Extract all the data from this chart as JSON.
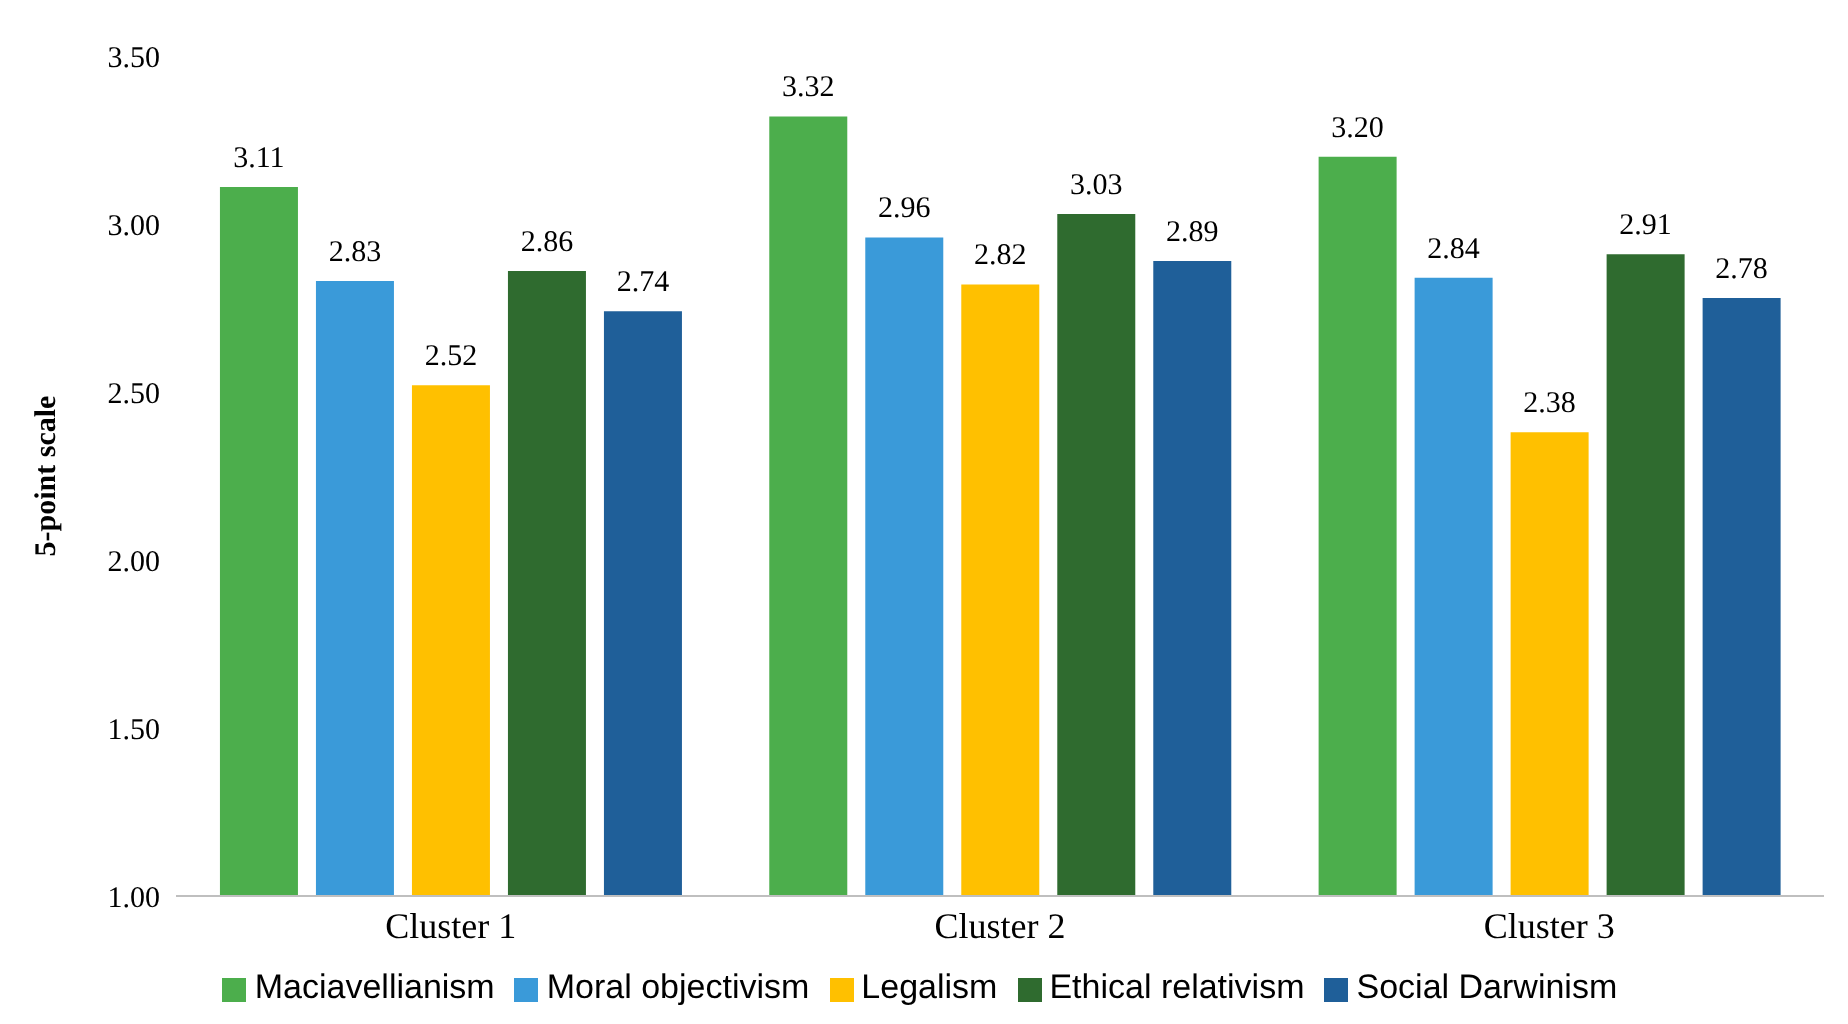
{
  "chart_data": {
    "type": "bar",
    "ylabel": "5-point scale",
    "categories": [
      "Cluster 1",
      "Cluster 2",
      "Cluster 3"
    ],
    "series": [
      {
        "name": "Maciavellianism",
        "color": "#4cae4c",
        "values": [
          3.11,
          3.32,
          3.2
        ],
        "value_labels": [
          "3.11",
          "3.32",
          "3.20"
        ]
      },
      {
        "name": "Moral objectivism",
        "color": "#3a9ad9",
        "values": [
          2.83,
          2.96,
          2.84
        ],
        "value_labels": [
          "2.83",
          "2.96",
          "2.84"
        ]
      },
      {
        "name": "Legalism",
        "color": "#ffc000",
        "values": [
          2.52,
          2.82,
          2.38
        ],
        "value_labels": [
          "2.52",
          "2.82",
          "2.38"
        ]
      },
      {
        "name": "Ethical relativism",
        "color": "#2f6b2f",
        "values": [
          2.86,
          3.03,
          2.91
        ],
        "value_labels": [
          "2.86",
          "3.03",
          "2.91"
        ]
      },
      {
        "name": "Social Darwinism",
        "color": "#1f5f99",
        "values": [
          2.74,
          2.89,
          2.78
        ],
        "value_labels": [
          "2.74",
          "2.89",
          "2.78"
        ]
      }
    ],
    "ylim": [
      1,
      3.5
    ],
    "yticks": [
      {
        "value": 1,
        "label": "1.00"
      },
      {
        "value": 1.5,
        "label": "1.50"
      },
      {
        "value": 2,
        "label": "2.00"
      },
      {
        "value": 2.5,
        "label": "2.50"
      },
      {
        "value": 3,
        "label": "3.00"
      },
      {
        "value": 3.5,
        "label": "3.50"
      }
    ],
    "grid": false,
    "legend": "bottom"
  }
}
